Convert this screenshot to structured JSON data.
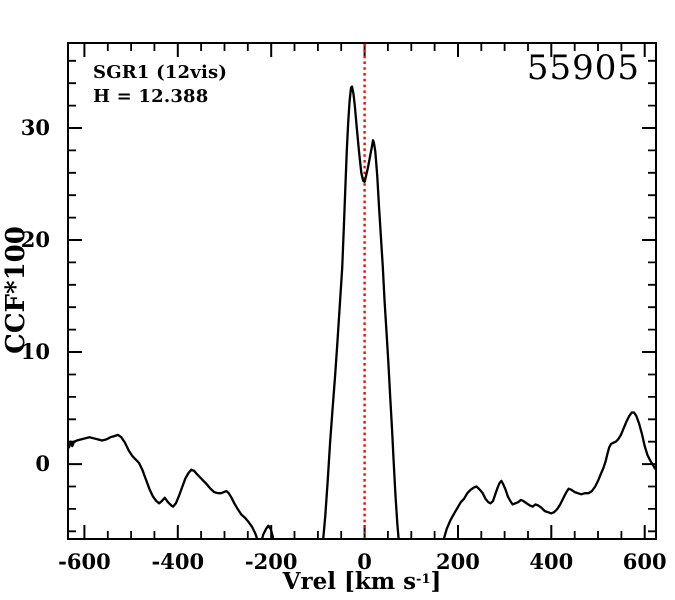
{
  "chart_data": {
    "type": "line",
    "title": "",
    "ylabel": "CCF*100",
    "xlabel_parts": {
      "prefix": "Vrel [km s",
      "superscript": "-1",
      "suffix": "]"
    },
    "xlim": [
      -633,
      622
    ],
    "ylim": [
      -6.6,
      37.5
    ],
    "x_major_ticks": [
      -600,
      -400,
      -200,
      0,
      200,
      400,
      600
    ],
    "x_tick_labels": [
      "-600",
      "-400",
      "-200",
      "0",
      "200",
      "400",
      "600"
    ],
    "x_minor_step": 50,
    "y_major_ticks": [
      0,
      10,
      20,
      30
    ],
    "y_tick_labels": [
      "0",
      "10",
      "20",
      "30"
    ],
    "y_minor_step": 2,
    "grid": false,
    "legend": "none",
    "frame_color": "#000000",
    "annotations": {
      "target": "SGR1 (12vis)",
      "h_index": "H = 12.388",
      "epoch": "55905"
    },
    "reference_line": {
      "x": 0,
      "color": "#ee1100",
      "style": "dotted"
    },
    "series": [
      {
        "name": "CCF",
        "color": "#000000",
        "points": [
          [
            -633,
            1.5
          ],
          [
            -629,
            2.0
          ],
          [
            -626,
            1.6
          ],
          [
            -622,
            2.0
          ],
          [
            -616,
            2.1
          ],
          [
            -607,
            2.2
          ],
          [
            -598,
            2.3
          ],
          [
            -589,
            2.4
          ],
          [
            -580,
            2.3
          ],
          [
            -571,
            2.2
          ],
          [
            -562,
            2.1
          ],
          [
            -553,
            2.2
          ],
          [
            -544,
            2.4
          ],
          [
            -536,
            2.5
          ],
          [
            -528,
            2.6
          ],
          [
            -521,
            2.4
          ],
          [
            -513,
            1.9
          ],
          [
            -505,
            1.2
          ],
          [
            -497,
            0.7
          ],
          [
            -490,
            0.4
          ],
          [
            -483,
            0.1
          ],
          [
            -476,
            -0.5
          ],
          [
            -469,
            -1.3
          ],
          [
            -461,
            -2.2
          ],
          [
            -453,
            -2.9
          ],
          [
            -446,
            -3.3
          ],
          [
            -440,
            -3.5
          ],
          [
            -434,
            -3.3
          ],
          [
            -428,
            -3.0
          ],
          [
            -421,
            -3.4
          ],
          [
            -414,
            -3.7
          ],
          [
            -410,
            -3.8
          ],
          [
            -404,
            -3.5
          ],
          [
            -398,
            -2.9
          ],
          [
            -391,
            -2.1
          ],
          [
            -384,
            -1.3
          ],
          [
            -377,
            -0.8
          ],
          [
            -371,
            -0.5
          ],
          [
            -365,
            -0.6
          ],
          [
            -359,
            -0.9
          ],
          [
            -352,
            -1.2
          ],
          [
            -345,
            -1.5
          ],
          [
            -338,
            -1.8
          ],
          [
            -330,
            -2.2
          ],
          [
            -322,
            -2.5
          ],
          [
            -314,
            -2.6
          ],
          [
            -307,
            -2.6
          ],
          [
            -301,
            -2.5
          ],
          [
            -296,
            -2.4
          ],
          [
            -291,
            -2.6
          ],
          [
            -285,
            -3.0
          ],
          [
            -279,
            -3.5
          ],
          [
            -272,
            -4.0
          ],
          [
            -264,
            -4.5
          ],
          [
            -256,
            -4.8
          ],
          [
            -248,
            -5.2
          ],
          [
            -241,
            -5.6
          ],
          [
            -234,
            -6.2
          ],
          [
            -229,
            -6.8
          ],
          [
            -226,
            -7.4
          ],
          [
            -222,
            -7.1
          ],
          [
            -217,
            -6.3
          ],
          [
            -211,
            -5.8
          ],
          [
            -206,
            -5.5
          ],
          [
            -201,
            -5.8
          ],
          [
            -197,
            -6.4
          ],
          [
            -194,
            -7.1
          ],
          [
            -190,
            -7.9
          ],
          [
            -183,
            -8.8
          ],
          [
            -170,
            -9.4
          ],
          [
            -150,
            -9.6
          ],
          [
            -120,
            -9.6
          ],
          [
            -103,
            -9.1
          ],
          [
            -95,
            -8.3
          ],
          [
            -89,
            -6.9
          ],
          [
            -84,
            -4.6
          ],
          [
            -79,
            -1.5
          ],
          [
            -74,
            1.8
          ],
          [
            -69,
            4.6
          ],
          [
            -63,
            8.0
          ],
          [
            -58,
            11.0
          ],
          [
            -53,
            14.2
          ],
          [
            -48,
            17.5
          ],
          [
            -44,
            21.5
          ],
          [
            -41,
            24.8
          ],
          [
            -38,
            28.0
          ],
          [
            -35,
            30.5
          ],
          [
            -32,
            32.4
          ],
          [
            -29,
            33.6
          ],
          [
            -27,
            33.7
          ],
          [
            -24,
            33.1
          ],
          [
            -21,
            32.0
          ],
          [
            -17,
            30.2
          ],
          [
            -12,
            27.9
          ],
          [
            -7,
            26.0
          ],
          [
            -3,
            25.3
          ],
          [
            0,
            25.2
          ],
          [
            3,
            25.7
          ],
          [
            7,
            26.4
          ],
          [
            11,
            27.3
          ],
          [
            15,
            28.2
          ],
          [
            18,
            28.9
          ],
          [
            20,
            28.7
          ],
          [
            23,
            27.9
          ],
          [
            27,
            25.8
          ],
          [
            31,
            23.0
          ],
          [
            35,
            20.3
          ],
          [
            39,
            17.6
          ],
          [
            43,
            14.5
          ],
          [
            47,
            11.8
          ],
          [
            51,
            9.0
          ],
          [
            55,
            6.0
          ],
          [
            59,
            3.0
          ],
          [
            62,
            0.5
          ],
          [
            66,
            -2.7
          ],
          [
            70,
            -5.3
          ],
          [
            74,
            -7.2
          ],
          [
            80,
            -9.0
          ],
          [
            95,
            -9.8
          ],
          [
            120,
            -9.9
          ],
          [
            150,
            -9.5
          ],
          [
            162,
            -8.3
          ],
          [
            169,
            -6.8
          ],
          [
            176,
            -5.8
          ],
          [
            184,
            -5.0
          ],
          [
            192,
            -4.4
          ],
          [
            199,
            -3.9
          ],
          [
            206,
            -3.4
          ],
          [
            213,
            -3.1
          ],
          [
            220,
            -2.6
          ],
          [
            227,
            -2.3
          ],
          [
            234,
            -2.1
          ],
          [
            240,
            -2.0
          ],
          [
            247,
            -2.3
          ],
          [
            253,
            -2.6
          ],
          [
            259,
            -3.1
          ],
          [
            265,
            -3.4
          ],
          [
            270,
            -3.5
          ],
          [
            275,
            -3.3
          ],
          [
            280,
            -2.7
          ],
          [
            285,
            -2.1
          ],
          [
            289,
            -1.7
          ],
          [
            293,
            -1.5
          ],
          [
            297,
            -1.8
          ],
          [
            302,
            -2.3
          ],
          [
            307,
            -2.9
          ],
          [
            312,
            -3.3
          ],
          [
            317,
            -3.6
          ],
          [
            323,
            -3.5
          ],
          [
            329,
            -3.4
          ],
          [
            335,
            -3.2
          ],
          [
            340,
            -3.3
          ],
          [
            347,
            -3.5
          ],
          [
            354,
            -3.7
          ],
          [
            360,
            -3.8
          ],
          [
            366,
            -3.6
          ],
          [
            372,
            -3.7
          ],
          [
            379,
            -3.9
          ],
          [
            386,
            -4.2
          ],
          [
            393,
            -4.3
          ],
          [
            400,
            -4.4
          ],
          [
            406,
            -4.3
          ],
          [
            413,
            -4.0
          ],
          [
            419,
            -3.6
          ],
          [
            425,
            -3.1
          ],
          [
            431,
            -2.6
          ],
          [
            437,
            -2.2
          ],
          [
            443,
            -2.3
          ],
          [
            450,
            -2.5
          ],
          [
            457,
            -2.6
          ],
          [
            464,
            -2.7
          ],
          [
            472,
            -2.6
          ],
          [
            480,
            -2.6
          ],
          [
            487,
            -2.4
          ],
          [
            494,
            -2.0
          ],
          [
            500,
            -1.5
          ],
          [
            506,
            -0.9
          ],
          [
            511,
            -0.4
          ],
          [
            516,
            0.2
          ],
          [
            520,
            0.9
          ],
          [
            524,
            1.5
          ],
          [
            528,
            1.8
          ],
          [
            533,
            1.9
          ],
          [
            538,
            2.0
          ],
          [
            543,
            2.2
          ],
          [
            549,
            2.6
          ],
          [
            555,
            3.2
          ],
          [
            561,
            3.8
          ],
          [
            567,
            4.3
          ],
          [
            572,
            4.6
          ],
          [
            577,
            4.6
          ],
          [
            582,
            4.3
          ],
          [
            588,
            3.6
          ],
          [
            594,
            2.7
          ],
          [
            600,
            1.6
          ],
          [
            606,
            0.8
          ],
          [
            612,
            0.3
          ],
          [
            618,
            -0.1
          ],
          [
            622,
            -0.4
          ]
        ]
      }
    ]
  }
}
